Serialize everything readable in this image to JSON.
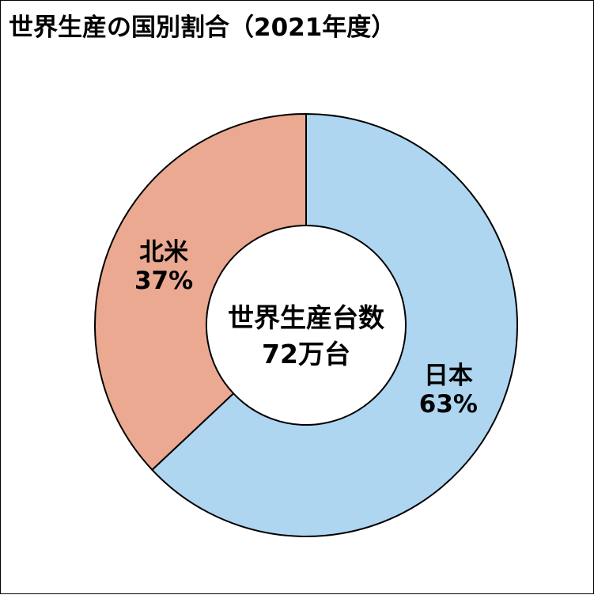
{
  "chart_data": {
    "type": "pie",
    "title": "世界生産の国別割合（2021年度）",
    "donut": true,
    "center_label": {
      "line1": "世界生産台数",
      "line2": "72万台"
    },
    "slices": [
      {
        "label": "日本",
        "value": 63,
        "value_label": "63%",
        "color": "#aed6f1"
      },
      {
        "label": "北米",
        "value": 37,
        "value_label": "37%",
        "color": "#eba992"
      }
    ],
    "start_angle": "12-o'clock",
    "direction": "clockwise"
  }
}
